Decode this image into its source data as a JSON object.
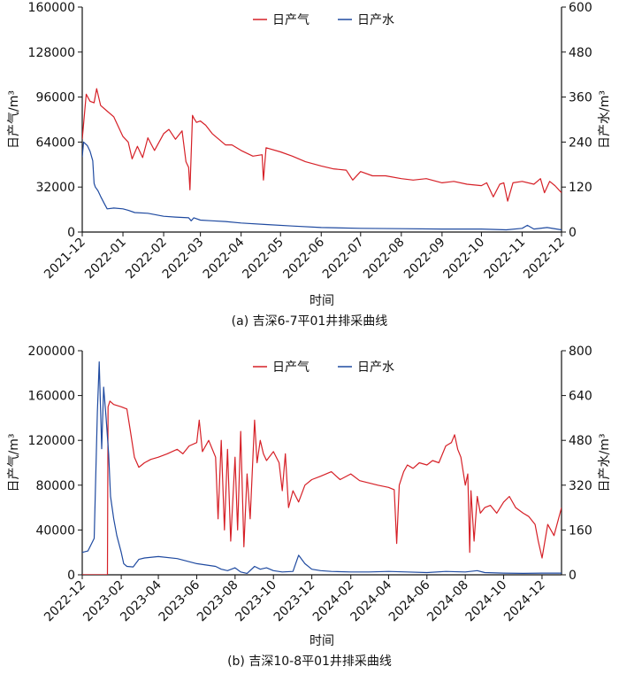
{
  "colors": {
    "gas": "#d62027",
    "water": "#1f4aa0",
    "axis": "#111111"
  },
  "chart_data": [
    {
      "type": "line",
      "caption": "(a) 吉深6-7平01井排采曲线",
      "xlabel": "时间",
      "ylabel": "日产气/m³",
      "y2label": "日产水/m³",
      "xlim": [
        "2021-12-01",
        "2022-12-01"
      ],
      "ylim": [
        0,
        160000
      ],
      "y2lim": [
        0,
        600
      ],
      "x_ticks": [
        "2021-12",
        "2022-01",
        "2022-02",
        "2022-03",
        "2022-04",
        "2022-05",
        "2022-06",
        "2022-07",
        "2022-08",
        "2022-09",
        "2022-10",
        "2022-11",
        "2022-12"
      ],
      "y_ticks": [
        "0",
        "32000",
        "64000",
        "96000",
        "128000",
        "160000"
      ],
      "y2_ticks": [
        "0",
        "120",
        "240",
        "360",
        "480",
        "600"
      ],
      "legend": {
        "position": "top-center",
        "entries": [
          "日产气",
          "日产水"
        ]
      },
      "series": [
        {
          "name": "日产气",
          "axis": "left",
          "color": "#d62027",
          "x": [
            "2021-12-01",
            "2021-12-04",
            "2021-12-07",
            "2021-12-10",
            "2021-12-12",
            "2021-12-15",
            "2021-12-20",
            "2021-12-25",
            "2022-01-01",
            "2022-01-05",
            "2022-01-08",
            "2022-01-12",
            "2022-01-16",
            "2022-01-20",
            "2022-01-25",
            "2022-02-01",
            "2022-02-05",
            "2022-02-10",
            "2022-02-15",
            "2022-02-18",
            "2022-02-20",
            "2022-02-21",
            "2022-02-23",
            "2022-02-24",
            "2022-02-26",
            "2022-03-01",
            "2022-03-05",
            "2022-03-10",
            "2022-03-15",
            "2022-03-20",
            "2022-03-25",
            "2022-04-01",
            "2022-04-10",
            "2022-04-17",
            "2022-04-18",
            "2022-04-20",
            "2022-05-01",
            "2022-05-10",
            "2022-05-20",
            "2022-06-01",
            "2022-06-10",
            "2022-06-20",
            "2022-06-25",
            "2022-07-01",
            "2022-07-10",
            "2022-07-20",
            "2022-08-01",
            "2022-08-10",
            "2022-08-20",
            "2022-09-01",
            "2022-09-10",
            "2022-09-20",
            "2022-10-01",
            "2022-10-05",
            "2022-10-10",
            "2022-10-15",
            "2022-10-18",
            "2022-10-21",
            "2022-10-25",
            "2022-11-01",
            "2022-11-10",
            "2022-11-15",
            "2022-11-18",
            "2022-11-22",
            "2022-11-26",
            "2022-12-01"
          ],
          "y": [
            66000,
            98000,
            93000,
            92000,
            102000,
            90000,
            86000,
            82000,
            68000,
            64000,
            52000,
            61000,
            53000,
            67000,
            58000,
            70000,
            73000,
            66000,
            72000,
            50000,
            46000,
            30000,
            83000,
            81000,
            78000,
            79000,
            76000,
            70000,
            66000,
            62000,
            62000,
            58000,
            54000,
            55000,
            37000,
            60000,
            57000,
            54000,
            50000,
            47000,
            45000,
            44000,
            37000,
            43000,
            40000,
            40000,
            38000,
            37000,
            38000,
            35000,
            36000,
            34000,
            33000,
            35000,
            25000,
            34000,
            35000,
            22000,
            35000,
            36000,
            34000,
            38000,
            28000,
            36000,
            33000,
            28000
          ]
        },
        {
          "name": "日产水",
          "axis": "right",
          "color": "#1f4aa0",
          "x": [
            "2021-12-01",
            "2021-12-02",
            "2021-12-05",
            "2021-12-07",
            "2021-12-09",
            "2021-12-10",
            "2021-12-11",
            "2021-12-13",
            "2021-12-15",
            "2021-12-18",
            "2021-12-20",
            "2021-12-25",
            "2022-01-01",
            "2022-01-05",
            "2022-01-10",
            "2022-01-20",
            "2022-02-01",
            "2022-02-10",
            "2022-02-20",
            "2022-02-22",
            "2022-02-24",
            "2022-03-01",
            "2022-03-10",
            "2022-03-20",
            "2022-04-01",
            "2022-04-20",
            "2022-05-10",
            "2022-06-01",
            "2022-07-01",
            "2022-08-01",
            "2022-09-01",
            "2022-10-01",
            "2022-10-20",
            "2022-11-01",
            "2022-11-05",
            "2022-11-10",
            "2022-11-20",
            "2022-12-01"
          ],
          "y": [
            200,
            240,
            230,
            215,
            190,
            130,
            120,
            110,
            95,
            75,
            62,
            64,
            62,
            58,
            52,
            50,
            42,
            40,
            38,
            30,
            38,
            32,
            30,
            28,
            24,
            20,
            16,
            12,
            10,
            9,
            8,
            8,
            6,
            10,
            18,
            8,
            12,
            6
          ]
        }
      ]
    },
    {
      "type": "line",
      "caption": "(b) 吉深10-8平01井排采曲线",
      "xlabel": "时间",
      "ylabel": "日产气/m³",
      "y2label": "日产水/m³",
      "xlim": [
        "2022-12-01",
        "2025-01-01"
      ],
      "ylim": [
        0,
        200000
      ],
      "y2lim": [
        0,
        800
      ],
      "x_ticks": [
        "2022-12",
        "2023-02",
        "2023-04",
        "2023-06",
        "2023-08",
        "2023-10",
        "2023-12",
        "2024-02",
        "2024-04",
        "2024-06",
        "2024-08",
        "2024-10",
        "2024-12"
      ],
      "y_ticks": [
        "0",
        "40000",
        "80000",
        "120000",
        "160000",
        "200000"
      ],
      "y2_ticks": [
        "0",
        "160",
        "320",
        "480",
        "640",
        "800"
      ],
      "legend": {
        "position": "top-center",
        "entries": [
          "日产气",
          "日产水"
        ]
      },
      "series": [
        {
          "name": "日产气",
          "axis": "left",
          "color": "#d62027",
          "x": [
            "2022-12-01",
            "2023-01-10",
            "2023-01-11",
            "2023-01-14",
            "2023-01-20",
            "2023-02-01",
            "2023-02-10",
            "2023-02-15",
            "2023-02-22",
            "2023-03-01",
            "2023-03-10",
            "2023-03-20",
            "2023-04-01",
            "2023-04-15",
            "2023-05-01",
            "2023-05-10",
            "2023-05-20",
            "2023-06-01",
            "2023-06-05",
            "2023-06-10",
            "2023-06-20",
            "2023-07-01",
            "2023-07-05",
            "2023-07-10",
            "2023-07-15",
            "2023-07-20",
            "2023-07-25",
            "2023-08-01",
            "2023-08-05",
            "2023-08-10",
            "2023-08-15",
            "2023-08-20",
            "2023-08-25",
            "2023-09-01",
            "2023-09-05",
            "2023-09-10",
            "2023-09-15",
            "2023-09-20",
            "2023-10-01",
            "2023-10-10",
            "2023-10-15",
            "2023-10-20",
            "2023-10-25",
            "2023-11-01",
            "2023-11-10",
            "2023-11-20",
            "2023-12-01",
            "2023-12-15",
            "2024-01-01",
            "2024-01-15",
            "2024-02-01",
            "2024-02-15",
            "2024-03-01",
            "2024-03-15",
            "2024-04-01",
            "2024-04-10",
            "2024-04-14",
            "2024-04-18",
            "2024-04-25",
            "2024-05-01",
            "2024-05-10",
            "2024-05-20",
            "2024-06-01",
            "2024-06-10",
            "2024-06-20",
            "2024-07-01",
            "2024-07-10",
            "2024-07-15",
            "2024-07-20",
            "2024-07-25",
            "2024-08-01",
            "2024-08-05",
            "2024-08-08",
            "2024-08-10",
            "2024-08-15",
            "2024-08-20",
            "2024-08-25",
            "2024-09-01",
            "2024-09-10",
            "2024-09-20",
            "2024-10-01",
            "2024-10-10",
            "2024-10-20",
            "2024-11-01",
            "2024-11-10",
            "2024-11-20",
            "2024-11-25",
            "2024-12-01",
            "2024-12-10",
            "2024-12-20",
            "2025-01-01"
          ],
          "y": [
            0,
            0,
            150000,
            155000,
            152000,
            150000,
            148000,
            130000,
            105000,
            96000,
            100000,
            103000,
            105000,
            108000,
            112000,
            108000,
            115000,
            118000,
            138000,
            110000,
            120000,
            105000,
            50000,
            120000,
            40000,
            112000,
            30000,
            105000,
            40000,
            128000,
            25000,
            90000,
            50000,
            138000,
            100000,
            120000,
            108000,
            102000,
            110000,
            100000,
            75000,
            108000,
            60000,
            75000,
            65000,
            80000,
            85000,
            88000,
            92000,
            85000,
            90000,
            84000,
            82000,
            80000,
            78000,
            76000,
            28000,
            80000,
            92000,
            98000,
            95000,
            100000,
            98000,
            102000,
            100000,
            115000,
            118000,
            125000,
            112000,
            105000,
            80000,
            90000,
            20000,
            75000,
            30000,
            70000,
            55000,
            60000,
            62000,
            55000,
            65000,
            70000,
            60000,
            55000,
            52000,
            45000,
            30000,
            15000,
            45000,
            35000,
            60000
          ]
        },
        {
          "name": "日产水",
          "axis": "right",
          "color": "#1f4aa0",
          "x": [
            "2022-12-01",
            "2022-12-10",
            "2022-12-20",
            "2022-12-25",
            "2022-12-28",
            "2023-01-01",
            "2023-01-04",
            "2023-01-08",
            "2023-01-12",
            "2023-01-15",
            "2023-01-20",
            "2023-01-25",
            "2023-02-01",
            "2023-02-05",
            "2023-02-10",
            "2023-02-20",
            "2023-03-01",
            "2023-03-10",
            "2023-04-01",
            "2023-05-01",
            "2023-06-01",
            "2023-07-01",
            "2023-07-10",
            "2023-07-20",
            "2023-08-01",
            "2023-08-10",
            "2023-08-20",
            "2023-09-01",
            "2023-09-10",
            "2023-09-20",
            "2023-10-01",
            "2023-10-15",
            "2023-11-01",
            "2023-11-10",
            "2023-11-20",
            "2023-12-01",
            "2023-12-15",
            "2024-01-01",
            "2024-02-01",
            "2024-03-01",
            "2024-04-01",
            "2024-05-01",
            "2024-06-01",
            "2024-07-01",
            "2024-08-01",
            "2024-08-20",
            "2024-09-01",
            "2024-10-01",
            "2024-11-01",
            "2024-12-01",
            "2025-01-01"
          ],
          "y": [
            80,
            85,
            130,
            580,
            760,
            450,
            670,
            560,
            430,
            280,
            200,
            140,
            80,
            40,
            30,
            28,
            55,
            60,
            65,
            58,
            40,
            30,
            20,
            15,
            25,
            10,
            5,
            30,
            20,
            25,
            15,
            10,
            12,
            70,
            40,
            20,
            15,
            12,
            10,
            10,
            12,
            10,
            8,
            12,
            10,
            15,
            8,
            6,
            5,
            6,
            6
          ]
        }
      ]
    }
  ]
}
